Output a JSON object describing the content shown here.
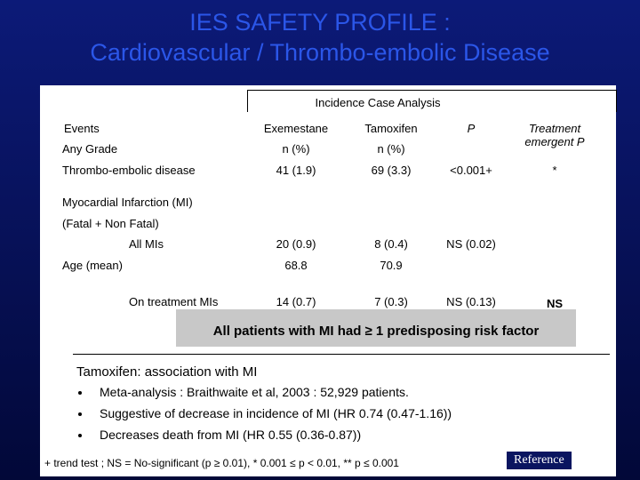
{
  "title": {
    "line1": "IES SAFETY PROFILE :",
    "line2": "Cardiovascular / Thrombo-embolic Disease"
  },
  "table": {
    "caption": "Incidence Case Analysis",
    "header": {
      "label": "Events",
      "exemestane": "Exemestane",
      "tamoxifen": "Tamoxifen",
      "p": "P",
      "treatment": "Treatment emergent P"
    },
    "rows": [
      {
        "label": "Any Grade",
        "exemestane": "n (%)",
        "tamoxifen": "n (%)"
      },
      {
        "label": "Thrombo-embolic disease",
        "exemestane": "41 (1.9)",
        "tamoxifen": "69 (3.3)",
        "p": "<0.001+",
        "treatment": "*"
      },
      {
        "label": "Myocardial Infarction (MI)"
      },
      {
        "label": "(Fatal + Non Fatal)"
      },
      {
        "label": "All MIs",
        "exemestane": "20 (0.9)",
        "tamoxifen": "8 (0.4)",
        "p": "NS (0.02)"
      },
      {
        "label": "Age (mean)",
        "exemestane": "68.8",
        "tamoxifen": "70.9"
      },
      {
        "label": "On treatment MIs",
        "exemestane": "14 (0.7)",
        "tamoxifen": "7 (0.3)",
        "p": "NS (0.13)",
        "treatment": "NS"
      }
    ]
  },
  "callout": "All patients with MI had ≥ 1 predisposing risk factor",
  "association": {
    "heading": "Tamoxifen: association with MI",
    "bullets": [
      "Meta-analysis : Braithwaite et al, 2003 : 52,929 patients.",
      "Suggestive of decrease in incidence of MI (HR 0.74 (0.47-1.16))",
      "Decreases death from MI (HR 0.55 (0.36-0.87))"
    ]
  },
  "footnote": "+ trend test ; NS = No-significant (p ≥ 0.01), * 0.001 ≤ p < 0.01, ** p ≤ 0.001",
  "reference": "Reference"
}
